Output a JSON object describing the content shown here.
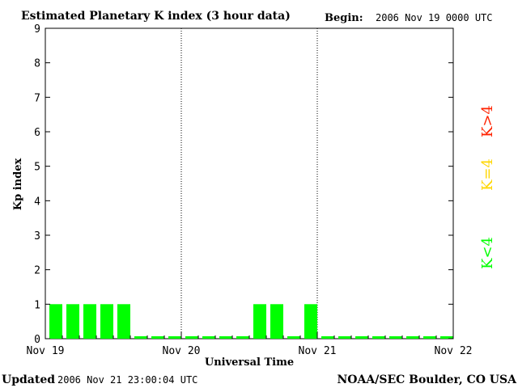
{
  "chart_data": {
    "type": "bar",
    "title": "Estimated Planetary K index (3 hour data)",
    "begin_label": "Begin:",
    "begin_value": "2006 Nov 19 0000 UTC",
    "ylabel": "Kp index",
    "xlabel": "Universal Time",
    "ylim": [
      0,
      9
    ],
    "yticks": [
      "0",
      "1",
      "2",
      "3",
      "4",
      "5",
      "6",
      "7",
      "8",
      "9"
    ],
    "x_tick_labels": [
      "Nov 19",
      "Nov 20",
      "Nov 21",
      "Nov 22"
    ],
    "bars_per_day": 8,
    "values": [
      1,
      1,
      1,
      1,
      1,
      0,
      0,
      0,
      0,
      0,
      0,
      0,
      1,
      1,
      0,
      1,
      0,
      0,
      0,
      0,
      0,
      0,
      0,
      0
    ],
    "bar_color": "#00ff00",
    "legend": [
      {
        "label": "K<4",
        "color": "#00ff00"
      },
      {
        "label": "K=4",
        "color": "#ffd700"
      },
      {
        "label": "K>4",
        "color": "#ff2200"
      }
    ],
    "grid": "vertical dotted day separators"
  },
  "footer": {
    "updated_label": "Updated",
    "updated_value": "2006 Nov 21 23:00:04 UTC",
    "credit": "NOAA/SEC Boulder, CO USA"
  }
}
